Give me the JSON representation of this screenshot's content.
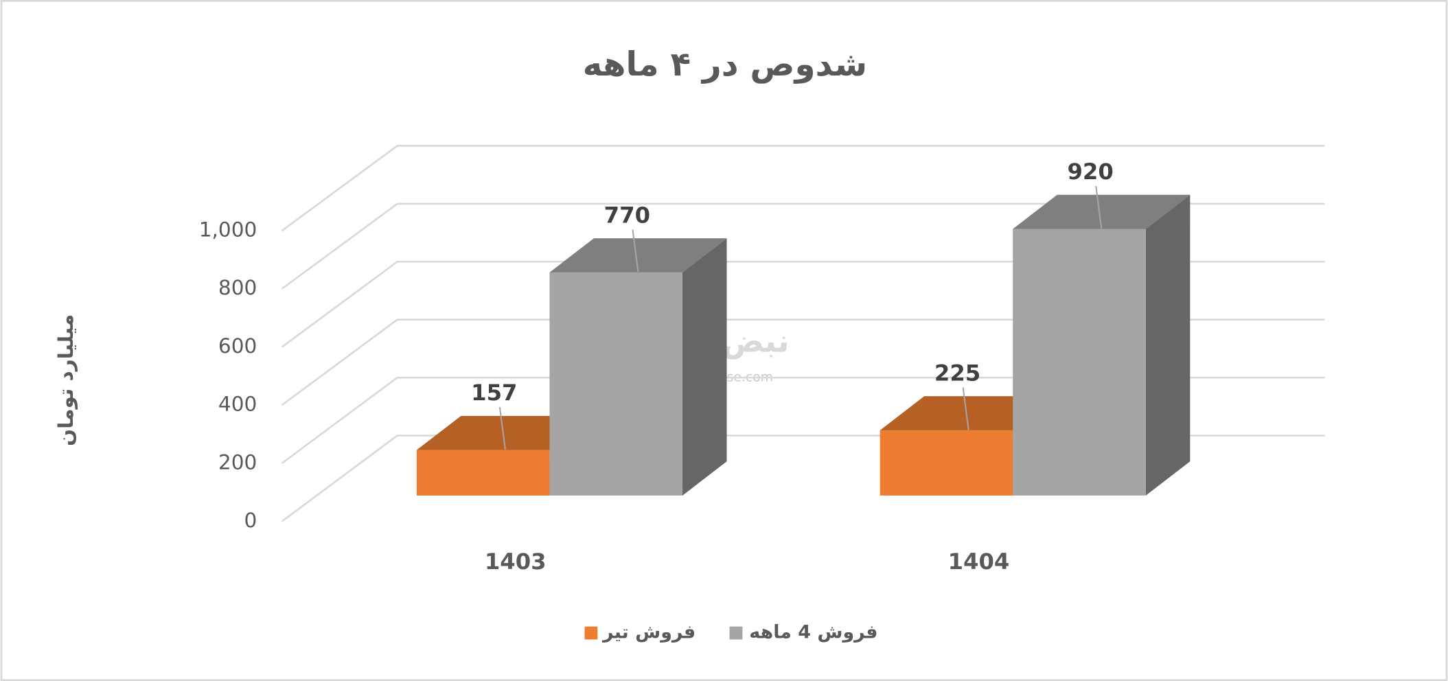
{
  "chart_data": {
    "type": "bar3d",
    "title": "شدوص در ۴ ماهه",
    "y_label": "میلیارد تومان",
    "categories": [
      "1403",
      "1404"
    ],
    "series": [
      {
        "name": "فروش تیر",
        "color": "#ed7d31",
        "values": [
          157,
          225
        ]
      },
      {
        "name": "فروش 4 ماهه",
        "color": "#a5a5a5",
        "values": [
          770,
          920
        ]
      }
    ],
    "ylim": [
      0,
      1000
    ],
    "yticks": [
      0,
      200,
      400,
      600,
      800,
      {
        "value": 1000,
        "label": "1,000"
      }
    ],
    "grid": true,
    "legend": "bottom",
    "watermark": {
      "text": "نبض بورس",
      "url": "nabzebourse.com"
    }
  }
}
